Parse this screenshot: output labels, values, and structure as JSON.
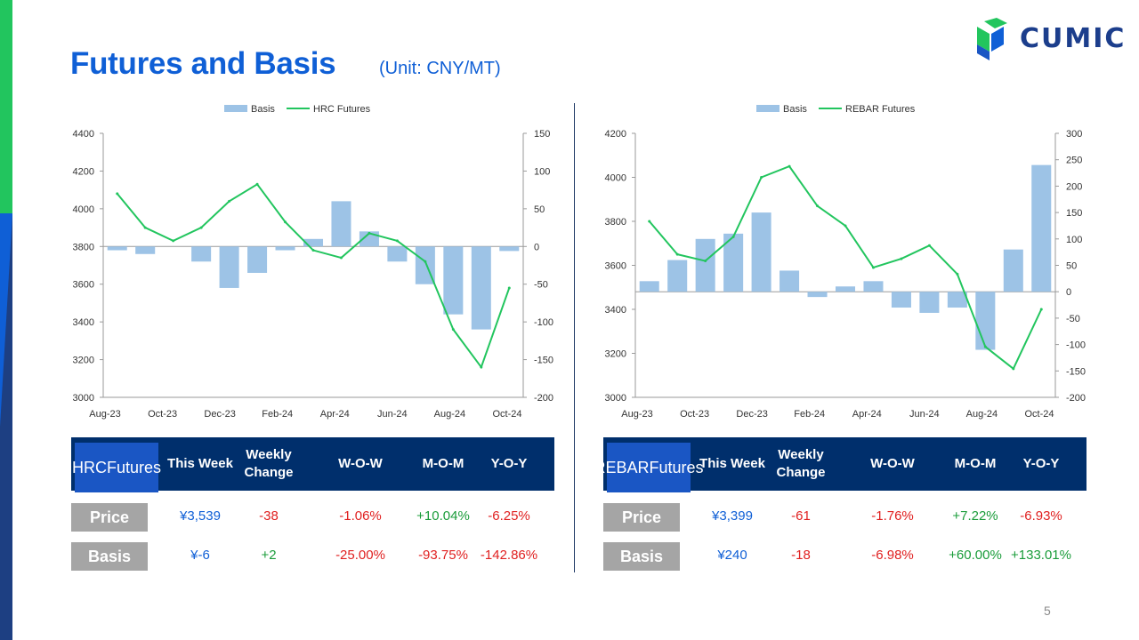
{
  "title": "Futures and Basis",
  "unit": "(Unit: CNY/MT)",
  "logo_text": "CUMIC",
  "page_number": "5",
  "colors": {
    "basis": "#9dc3e6",
    "futures_line": "#22c55e",
    "accent_blue": "#0f5fd6",
    "header_navy": "#002f6c",
    "negative": "#e02020",
    "positive": "#1a9c3a"
  },
  "chart_data": [
    {
      "type": "bar+line",
      "legend": [
        "Basis",
        "HRC Futures"
      ],
      "x_tick_labels": [
        "Aug-23",
        "Oct-23",
        "Dec-23",
        "Feb-24",
        "Apr-24",
        "Jun-24",
        "Aug-24",
        "Oct-24"
      ],
      "y_left_ticks": [
        "4400",
        "4200",
        "4000",
        "3800",
        "3600",
        "3400",
        "3200",
        "3000"
      ],
      "y_right_ticks": [
        "150",
        "100",
        "50",
        "0",
        "-50",
        "-100",
        "-150",
        "-200"
      ],
      "ylim_left": [
        3000,
        4400
      ],
      "ylim_right": [
        -200,
        150
      ],
      "series": [
        {
          "name": "HRC Futures",
          "axis": "left",
          "x": [
            "Aug-23",
            "Sep-23",
            "Oct-23",
            "Nov-23",
            "Dec-23",
            "Jan-24",
            "Feb-24",
            "Mar-24",
            "Apr-24",
            "May-24",
            "Jun-24",
            "Jul-24",
            "Aug-24",
            "Sep-24",
            "Oct-24"
          ],
          "values": [
            4080,
            3900,
            3830,
            3900,
            4040,
            4130,
            3930,
            3780,
            3740,
            3870,
            3830,
            3720,
            3360,
            3160,
            3580
          ]
        },
        {
          "name": "Basis",
          "axis": "right",
          "x": [
            "Aug-23",
            "Sep-23",
            "Oct-23",
            "Nov-23",
            "Dec-23",
            "Jan-24",
            "Feb-24",
            "Mar-24",
            "Apr-24",
            "May-24",
            "Jun-24",
            "Jul-24",
            "Aug-24",
            "Sep-24",
            "Oct-24"
          ],
          "values": [
            -5,
            -10,
            0,
            -20,
            -55,
            -35,
            -5,
            10,
            60,
            20,
            -20,
            -50,
            -90,
            -110,
            -6
          ]
        }
      ]
    },
    {
      "type": "bar+line",
      "legend": [
        "Basis",
        "REBAR Futures"
      ],
      "x_tick_labels": [
        "Aug-23",
        "Oct-23",
        "Dec-23",
        "Feb-24",
        "Apr-24",
        "Jun-24",
        "Aug-24",
        "Oct-24"
      ],
      "y_left_ticks": [
        "4200",
        "4000",
        "3800",
        "3600",
        "3400",
        "3200",
        "3000"
      ],
      "y_right_ticks": [
        "300",
        "250",
        "200",
        "150",
        "100",
        "50",
        "0",
        "-50",
        "-100",
        "-150",
        "-200"
      ],
      "ylim_left": [
        3000,
        4200
      ],
      "ylim_right": [
        -200,
        300
      ],
      "series": [
        {
          "name": "REBAR Futures",
          "axis": "left",
          "x": [
            "Aug-23",
            "Sep-23",
            "Oct-23",
            "Nov-23",
            "Dec-23",
            "Jan-24",
            "Feb-24",
            "Mar-24",
            "Apr-24",
            "May-24",
            "Jun-24",
            "Jul-24",
            "Aug-24",
            "Sep-24",
            "Oct-24"
          ],
          "values": [
            3800,
            3650,
            3620,
            3730,
            4000,
            4050,
            3870,
            3780,
            3590,
            3630,
            3690,
            3560,
            3230,
            3130,
            3400
          ]
        },
        {
          "name": "Basis",
          "axis": "right",
          "x": [
            "Aug-23",
            "Sep-23",
            "Oct-23",
            "Nov-23",
            "Dec-23",
            "Jan-24",
            "Feb-24",
            "Mar-24",
            "Apr-24",
            "May-24",
            "Jun-24",
            "Jul-24",
            "Aug-24",
            "Sep-24",
            "Oct-24"
          ],
          "values": [
            20,
            60,
            100,
            110,
            150,
            40,
            -10,
            10,
            20,
            -30,
            -40,
            -30,
            -110,
            80,
            240
          ]
        }
      ]
    }
  ],
  "tables": [
    {
      "name_lines": [
        "HRC",
        "Futures"
      ],
      "headers": [
        "This Week",
        "Weekly\nChange",
        "W-O-W",
        "M-O-M",
        "Y-O-Y"
      ],
      "rows": [
        {
          "label": "Price",
          "cells": [
            "¥3,539",
            "-38",
            "-1.06%",
            "+10.04%",
            "-6.25%"
          ]
        },
        {
          "label": "Basis",
          "cells": [
            "¥-6",
            "+2",
            "-25.00%",
            "-93.75%",
            "-142.86%"
          ]
        }
      ]
    },
    {
      "name_lines": [
        "REBAR",
        "Futures"
      ],
      "headers": [
        "This Week",
        "Weekly\nChange",
        "W-O-W",
        "M-O-M",
        "Y-O-Y"
      ],
      "rows": [
        {
          "label": "Price",
          "cells": [
            "¥3,399",
            "-61",
            "-1.76%",
            "+7.22%",
            "-6.93%"
          ]
        },
        {
          "label": "Basis",
          "cells": [
            "¥240",
            "-18",
            "-6.98%",
            "+60.00%",
            "+133.01%"
          ]
        }
      ]
    }
  ]
}
